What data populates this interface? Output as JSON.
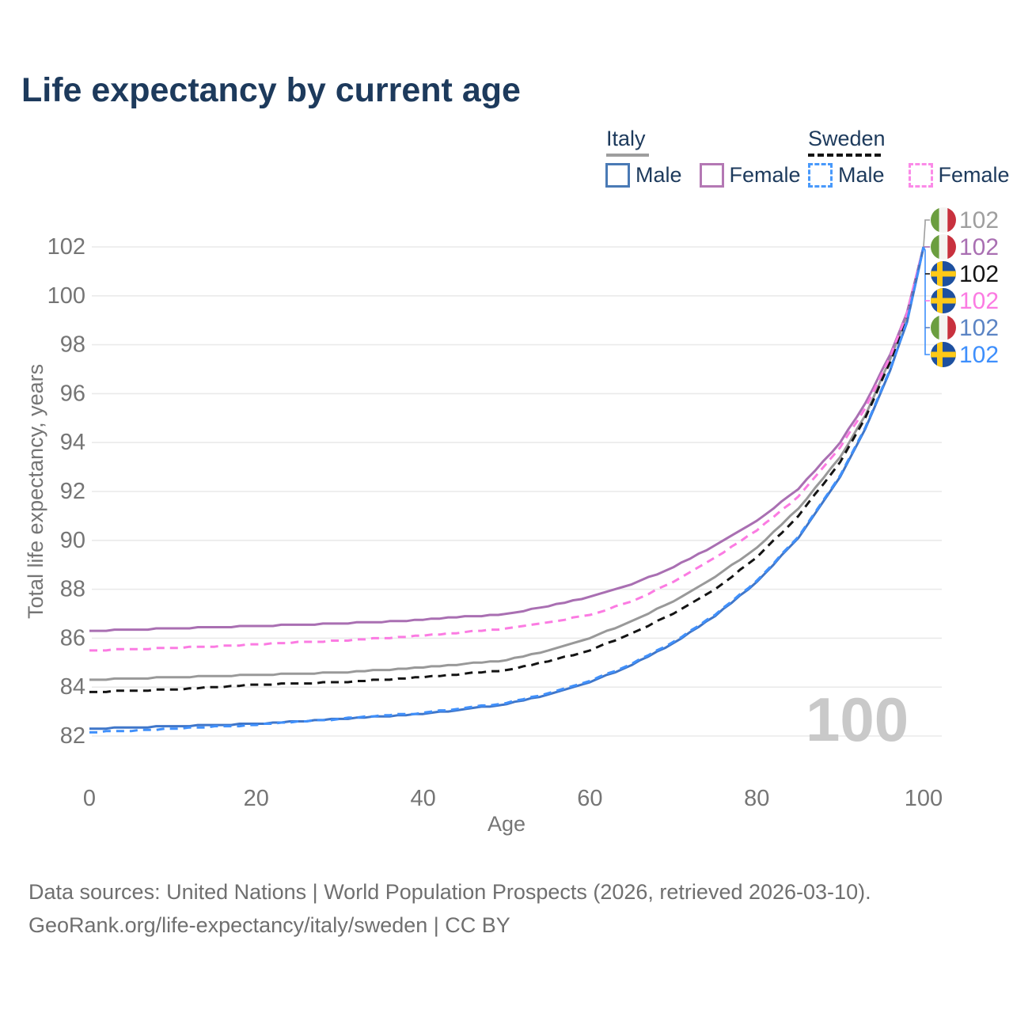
{
  "title": "Life expectancy by current age",
  "watermark": "100",
  "footer": {
    "line1": "Data sources: United Nations | World Population Prospects (2026, retrieved 2026-03-10).",
    "line2": "GeoRank.org/life-expectancy/italy/sweden | CC BY"
  },
  "legend": {
    "groups": [
      {
        "label": "Italy",
        "underline_style": "solid",
        "underline_color": "#9e9e9e",
        "items": [
          {
            "label": "Male",
            "color": "#4a7ab5",
            "dashed": false
          },
          {
            "label": "Female",
            "color": "#b478b4",
            "dashed": false
          }
        ]
      },
      {
        "label": "Sweden",
        "underline_style": "dashed",
        "underline_color": "#141414",
        "items": [
          {
            "label": "Male",
            "color": "#4899fb",
            "dashed": true
          },
          {
            "label": "Female",
            "color": "#fb8ae8",
            "dashed": true
          }
        ]
      }
    ]
  },
  "end_labels": [
    {
      "flag": "italy",
      "value": "102",
      "color": "#9e9e9e"
    },
    {
      "flag": "italy",
      "value": "102",
      "color": "#a96fb2"
    },
    {
      "flag": "sweden",
      "value": "102",
      "color": "#141414"
    },
    {
      "flag": "sweden",
      "value": "102",
      "color": "#fb7be2"
    },
    {
      "flag": "italy",
      "value": "102",
      "color": "#5b84c4"
    },
    {
      "flag": "sweden",
      "value": "102",
      "color": "#3e8ffc"
    }
  ],
  "flag_colors": {
    "italy_green": "#6b9e3f",
    "italy_white": "#f4f4f2",
    "italy_red": "#c8313e",
    "sweden_blue": "#1d509f",
    "sweden_yellow": "#fdc917"
  },
  "chart_data": {
    "type": "line",
    "title": "Life expectancy by current age",
    "xlabel": "Age",
    "ylabel": "Total life expectancy, years",
    "xlim": [
      0,
      100
    ],
    "ylim": [
      81,
      103
    ],
    "x_ticks": [
      0,
      20,
      40,
      60,
      80,
      100
    ],
    "y_ticks": [
      82,
      84,
      86,
      88,
      90,
      92,
      94,
      96,
      98,
      100,
      102
    ],
    "grid": "horizontal-only",
    "legend_position": "top-right",
    "x": [
      0,
      10,
      20,
      30,
      40,
      50,
      55,
      60,
      65,
      70,
      75,
      80,
      85,
      90,
      93,
      96,
      98,
      100
    ],
    "series": [
      {
        "name": "Italy (both sexes)",
        "country": "Italy",
        "sex": "both",
        "color": "#999999",
        "dashed": false,
        "end_value": 102,
        "values": [
          84.3,
          84.4,
          84.5,
          84.6,
          84.8,
          85.1,
          85.5,
          86.0,
          86.7,
          87.5,
          88.5,
          89.7,
          91.3,
          93.4,
          95.1,
          97.4,
          99.2,
          102
        ]
      },
      {
        "name": "Italy Female",
        "country": "Italy",
        "sex": "female",
        "color": "#a96fb2",
        "dashed": false,
        "end_value": 102,
        "values": [
          86.3,
          86.4,
          86.5,
          86.6,
          86.75,
          87.0,
          87.3,
          87.7,
          88.2,
          88.9,
          89.8,
          90.8,
          92.1,
          94.0,
          95.6,
          97.6,
          99.3,
          102
        ]
      },
      {
        "name": "Sweden (both sexes)",
        "country": "Sweden",
        "sex": "both",
        "color": "#141414",
        "dashed": true,
        "end_value": 102,
        "values": [
          83.8,
          83.9,
          84.1,
          84.2,
          84.4,
          84.7,
          85.05,
          85.5,
          86.2,
          87.0,
          88.0,
          89.3,
          91.0,
          93.2,
          95.0,
          97.3,
          99.15,
          102
        ]
      },
      {
        "name": "Sweden Female",
        "country": "Sweden",
        "sex": "female",
        "color": "#fb7be2",
        "dashed": true,
        "end_value": 102,
        "values": [
          85.5,
          85.6,
          85.75,
          85.9,
          86.1,
          86.4,
          86.65,
          86.95,
          87.5,
          88.3,
          89.3,
          90.4,
          91.8,
          93.8,
          95.4,
          97.5,
          99.25,
          102
        ]
      },
      {
        "name": "Italy Male",
        "country": "Italy",
        "sex": "male",
        "color": "#3f76c9",
        "dashed": false,
        "end_value": 102,
        "values": [
          82.3,
          82.4,
          82.5,
          82.7,
          82.9,
          83.3,
          83.7,
          84.2,
          84.9,
          85.8,
          86.9,
          88.3,
          90.1,
          92.6,
          94.55,
          96.95,
          98.9,
          102
        ]
      },
      {
        "name": "Sweden Male",
        "country": "Sweden",
        "sex": "male",
        "color": "#4090fb",
        "dashed": true,
        "end_value": 102,
        "values": [
          82.15,
          82.3,
          82.45,
          82.7,
          82.95,
          83.35,
          83.75,
          84.25,
          84.95,
          85.85,
          86.95,
          88.35,
          90.15,
          92.65,
          94.6,
          97.0,
          98.95,
          102
        ]
      }
    ]
  }
}
